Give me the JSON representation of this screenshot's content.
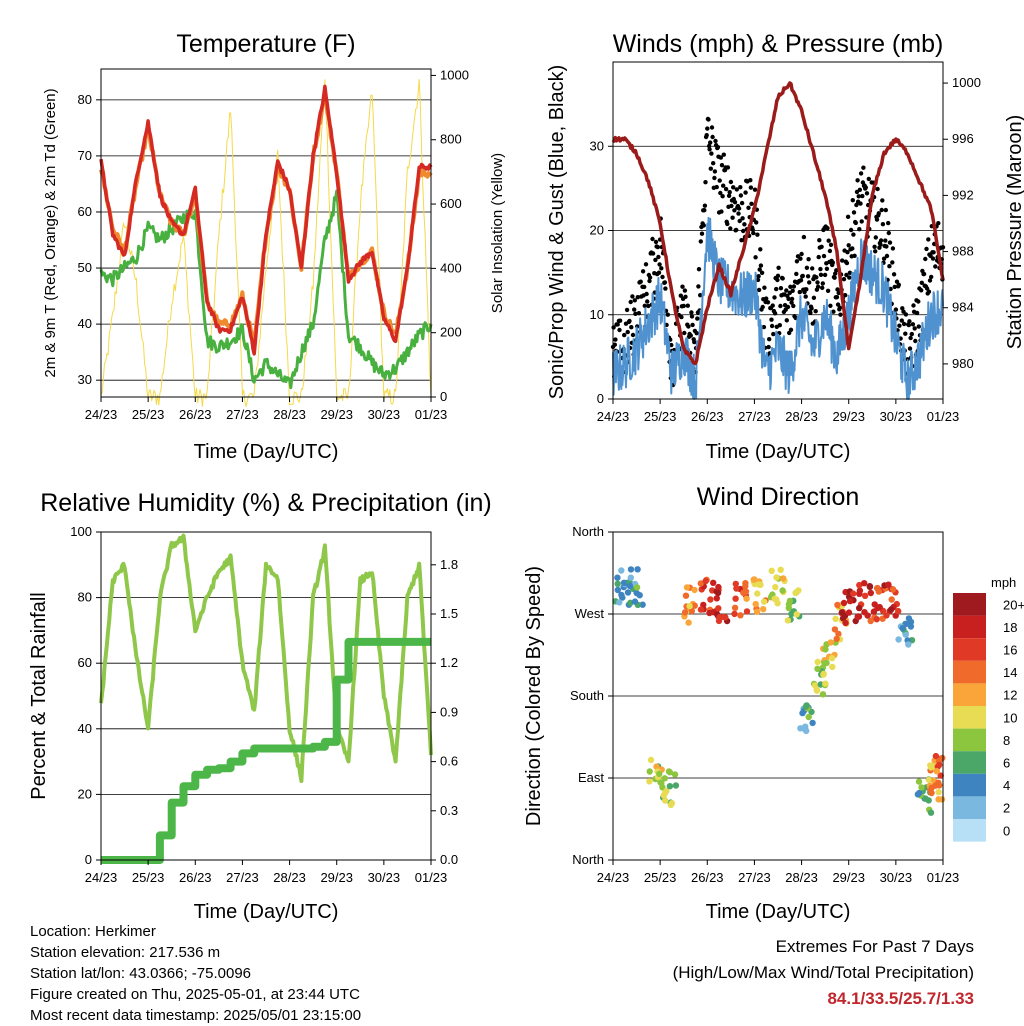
{
  "temperature": {
    "title": "Temperature (F)",
    "ylabel_left": "2m & 9m T (Red, Orange) & 2m Td (Green)",
    "ylabel_right": "Solar Insolation (Yellow)",
    "xlabel": "Time (Day/UTC)"
  },
  "winds": {
    "title": "Winds (mph) & Pressure (mb)",
    "ylabel_left": "Sonic/Prop Wind & Gust (Blue, Black)",
    "ylabel_right": "Station Pressure (Maroon)",
    "xlabel": "Time (Day/UTC)"
  },
  "humidity": {
    "title": "Relative Humidity (%) & Precipitation (in)",
    "ylabel_left": "Percent & Total Rainfall",
    "xlabel": "Time (Day/UTC)"
  },
  "direction": {
    "title": "Wind Direction",
    "ylabel_left": "Direction (Colored By Speed)",
    "xlabel": "Time (Day/UTC)",
    "colorbar_title": "mph",
    "colorbar_labels": [
      "20+",
      "18",
      "16",
      "14",
      "12",
      "10",
      "8",
      "6",
      "4",
      "2",
      "0"
    ],
    "colorbar_colors": [
      "#9e1a1e",
      "#c8201f",
      "#e03a26",
      "#f06b2b",
      "#f9a53a",
      "#e8dc55",
      "#8cc63f",
      "#4aa768",
      "#3d84c0",
      "#7ab8e0",
      "#b7dff5"
    ]
  },
  "info": {
    "location": "Location: Herkimer",
    "elevation": "Station elevation: 217.536 m",
    "latlon": "Station lat/lon: 43.0366; -75.0096",
    "created": "Figure created on Thu, 2025-05-01, at 23:44 UTC",
    "recent": "Most recent data timestamp: 2025/05/01 23:15:00"
  },
  "extremes": {
    "line1": "Extremes For Past 7 Days",
    "line2": "(High/Low/Max Wind/Total Precipitation)",
    "values": "84.1/33.5/25.7/1.33"
  },
  "colors": {
    "temp_2m": "#d42a23",
    "temp_9m": "#f08a2e",
    "dewpoint": "#48b03f",
    "solar": "#f5d94a",
    "wind": "#4f92cf",
    "gust": "#000000",
    "pressure": "#9b1b1b",
    "rh": "#8fc74a",
    "precip": "#4cb748"
  },
  "chart_data": [
    {
      "type": "line",
      "title": "Temperature (F)",
      "xlabel": "Time (Day/UTC)",
      "ylabel": "2m & 9m T (Red, Orange) & 2m Td (Green)",
      "ylabel_right": "Solar Insolation (Yellow)",
      "x_ticks": [
        "24/23",
        "25/23",
        "26/23",
        "27/23",
        "28/23",
        "29/23",
        "30/23",
        "01/23"
      ],
      "y_ticks": [
        30,
        40,
        50,
        60,
        70,
        80
      ],
      "y_ticks_right": [
        0,
        200,
        400,
        600,
        800,
        1000
      ],
      "ylim": [
        27,
        85.5
      ],
      "ylim_right": [
        0,
        1020
      ],
      "x": [
        0,
        0.25,
        0.5,
        0.75,
        1.0,
        1.25,
        1.5,
        1.75,
        2.0,
        2.25,
        2.5,
        2.75,
        3.0,
        3.25,
        3.5,
        3.75,
        4.0,
        4.25,
        4.5,
        4.75,
        5.0,
        5.25,
        5.5,
        5.75,
        6.0,
        6.25,
        6.5,
        6.75,
        7.0
      ],
      "series": [
        {
          "name": "2m T",
          "values": [
            69,
            56,
            52,
            66,
            76,
            63,
            58,
            56,
            64,
            44,
            39,
            39,
            45,
            35,
            56,
            69,
            64,
            50,
            70,
            82,
            67,
            48,
            51,
            53,
            41,
            37,
            50,
            68,
            68
          ]
        },
        {
          "name": "9m T",
          "values": [
            68,
            57,
            53,
            65,
            75,
            63,
            58,
            56,
            63,
            44,
            40,
            40,
            45,
            36,
            56,
            68,
            64,
            50,
            70,
            81,
            67,
            48,
            51,
            53,
            42,
            38,
            50,
            67,
            67
          ]
        },
        {
          "name": "2m Td",
          "values": [
            49,
            48,
            50,
            52,
            57,
            55,
            57,
            59,
            60,
            37,
            36,
            37,
            39,
            30,
            33,
            31,
            29,
            35,
            40,
            55,
            63,
            38,
            36,
            33,
            31,
            32,
            35,
            38,
            40
          ]
        },
        {
          "name": "Solar Insolation",
          "values": [
            0,
            250,
            550,
            350,
            0,
            0,
            300,
            500,
            0,
            0,
            500,
            900,
            0,
            0,
            400,
            750,
            0,
            0,
            350,
            1000,
            0,
            0,
            600,
            950,
            0,
            0,
            700,
            980,
            0
          ]
        }
      ]
    },
    {
      "type": "line",
      "title": "Winds (mph) & Pressure (mb)",
      "xlabel": "Time (Day/UTC)",
      "ylabel": "Sonic/Prop Wind & Gust (Blue, Black)",
      "ylabel_right": "Station Pressure (Maroon)",
      "x_ticks": [
        "24/23",
        "25/23",
        "26/23",
        "27/23",
        "28/23",
        "29/23",
        "30/23",
        "01/23"
      ],
      "y_ticks": [
        0,
        10,
        20,
        30
      ],
      "y_ticks_right": [
        980,
        984,
        988,
        992,
        996,
        1000
      ],
      "ylim": [
        0,
        40
      ],
      "ylim_right": [
        977.5,
        1001.5
      ],
      "x": [
        0,
        0.25,
        0.5,
        0.75,
        1.0,
        1.25,
        1.5,
        1.75,
        2.0,
        2.25,
        2.5,
        2.75,
        3.0,
        3.25,
        3.5,
        3.75,
        4.0,
        4.25,
        4.5,
        4.75,
        5.0,
        5.25,
        5.5,
        5.75,
        6.0,
        6.25,
        6.5,
        6.75,
        7.0
      ],
      "series": [
        {
          "name": "Wind",
          "values": [
            3,
            4,
            6,
            9,
            12,
            3,
            6,
            2,
            20,
            14,
            13,
            12,
            13,
            3,
            6,
            3,
            10,
            6,
            10,
            5,
            10,
            17,
            15,
            13,
            7,
            2,
            5,
            10,
            11
          ]
        },
        {
          "name": "Gust",
          "values": [
            5,
            6,
            10,
            13,
            19,
            5,
            10,
            5,
            31,
            26,
            24,
            22,
            22,
            8,
            12,
            10,
            17,
            12,
            18,
            11,
            18,
            24,
            22,
            20,
            12,
            5,
            10,
            17,
            18
          ]
        },
        {
          "name": "Pressure",
          "values": [
            996,
            996,
            995,
            993,
            990,
            985,
            981,
            980,
            984,
            987,
            985,
            988,
            991,
            995,
            999,
            1000,
            998,
            995,
            992,
            988,
            981,
            986,
            992,
            995,
            996,
            995,
            993,
            991,
            986
          ]
        }
      ]
    },
    {
      "type": "line",
      "title": "Relative Humidity (%) & Precipitation (in)",
      "xlabel": "Time (Day/UTC)",
      "ylabel": "Percent & Total Rainfall",
      "x_ticks": [
        "24/23",
        "25/23",
        "26/23",
        "27/23",
        "28/23",
        "29/23",
        "30/23",
        "01/23"
      ],
      "y_ticks": [
        0,
        20,
        40,
        60,
        80,
        100
      ],
      "y_ticks_right": [
        0.0,
        0.3,
        0.6,
        0.9,
        1.2,
        1.5,
        1.8
      ],
      "ylim": [
        0,
        100
      ],
      "ylim_right": [
        0,
        2.0
      ],
      "x": [
        0,
        0.25,
        0.5,
        0.75,
        1.0,
        1.25,
        1.5,
        1.75,
        2.0,
        2.25,
        2.5,
        2.75,
        3.0,
        3.25,
        3.5,
        3.75,
        4.0,
        4.25,
        4.5,
        4.75,
        5.0,
        5.25,
        5.5,
        5.75,
        6.0,
        6.25,
        6.5,
        6.75,
        7.0
      ],
      "series": [
        {
          "name": "Relative Humidity",
          "values": [
            47,
            85,
            90,
            62,
            40,
            80,
            96,
            98,
            70,
            80,
            88,
            92,
            60,
            45,
            90,
            86,
            40,
            25,
            80,
            95,
            40,
            30,
            85,
            88,
            50,
            30,
            80,
            90,
            32
          ]
        },
        {
          "name": "Total Rainfall",
          "values": [
            0,
            0,
            0,
            0,
            0,
            0.15,
            0.35,
            0.45,
            0.52,
            0.55,
            0.56,
            0.6,
            0.65,
            0.68,
            0.68,
            0.68,
            0.68,
            0.68,
            0.69,
            0.72,
            1.1,
            1.33,
            1.33,
            1.33,
            1.33,
            1.33,
            1.33,
            1.33,
            1.33
          ]
        }
      ]
    },
    {
      "type": "scatter",
      "title": "Wind Direction",
      "xlabel": "Time (Day/UTC)",
      "ylabel": "Direction (Colored By Speed)",
      "x_ticks": [
        "24/23",
        "25/23",
        "26/23",
        "27/23",
        "28/23",
        "29/23",
        "30/23",
        "01/23"
      ],
      "y_ticks": [
        "North",
        "East",
        "South",
        "West",
        "North"
      ],
      "ylim": [
        0,
        360
      ],
      "colorbar_units": "mph",
      "x": [
        0.2,
        0.5,
        0.9,
        1.2,
        1.6,
        2.0,
        2.3,
        2.7,
        3.1,
        3.5,
        3.8,
        4.1,
        4.4,
        4.6,
        4.8,
        5.0,
        5.3,
        5.6,
        5.9,
        6.2,
        6.6,
        6.85,
        6.95
      ],
      "series": [
        {
          "name": "Direction",
          "values": [
            300,
            300,
            90,
            80,
            280,
            290,
            280,
            285,
            290,
            300,
            280,
            150,
            200,
            220,
            260,
            280,
            285,
            280,
            285,
            250,
            70,
            85,
            95
          ]
        },
        {
          "name": "Speed",
          "values": [
            4,
            5,
            9,
            8,
            12,
            16,
            18,
            15,
            12,
            10,
            8,
            5,
            8,
            10,
            12,
            18,
            18,
            16,
            17,
            4,
            6,
            12,
            14
          ]
        }
      ]
    }
  ]
}
